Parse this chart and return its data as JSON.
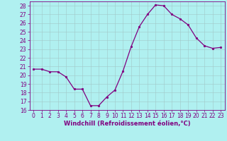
{
  "x": [
    0,
    1,
    2,
    3,
    4,
    5,
    6,
    7,
    8,
    9,
    10,
    11,
    12,
    13,
    14,
    15,
    16,
    17,
    18,
    19,
    20,
    21,
    22,
    23
  ],
  "y": [
    20.7,
    20.7,
    20.4,
    20.4,
    19.8,
    18.4,
    18.4,
    16.5,
    16.5,
    17.5,
    18.3,
    20.5,
    23.3,
    25.6,
    27.0,
    28.1,
    28.0,
    27.0,
    26.5,
    25.8,
    24.3,
    23.4,
    23.1,
    23.2
  ],
  "line_color": "#800080",
  "marker": "o",
  "marker_size": 1.8,
  "line_width": 0.9,
  "bg_color": "#b0f0f0",
  "grid_color": "#a0c8c8",
  "xlabel": "Windchill (Refroidissement éolien,°C)",
  "xlabel_color": "#800080",
  "xlabel_fontsize": 6.0,
  "tick_color": "#800080",
  "tick_fontsize": 5.5,
  "ylim": [
    16,
    28.5
  ],
  "xlim": [
    -0.5,
    23.5
  ],
  "yticks": [
    16,
    17,
    18,
    19,
    20,
    21,
    22,
    23,
    24,
    25,
    26,
    27,
    28
  ],
  "xticks": [
    0,
    1,
    2,
    3,
    4,
    5,
    6,
    7,
    8,
    9,
    10,
    11,
    12,
    13,
    14,
    15,
    16,
    17,
    18,
    19,
    20,
    21,
    22,
    23
  ]
}
